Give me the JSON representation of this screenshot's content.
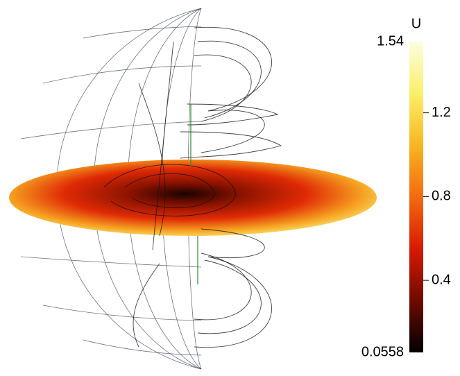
{
  "colorbar": {
    "title": "U",
    "min": 0.0558,
    "max": 1.54,
    "ticks": [
      0.4,
      0.8,
      1.2
    ],
    "colors": [
      "#000000",
      "#6e0a00",
      "#d81a00",
      "#f36a10",
      "#f7b621",
      "#fbf06a",
      "#fdfde0"
    ]
  }
}
